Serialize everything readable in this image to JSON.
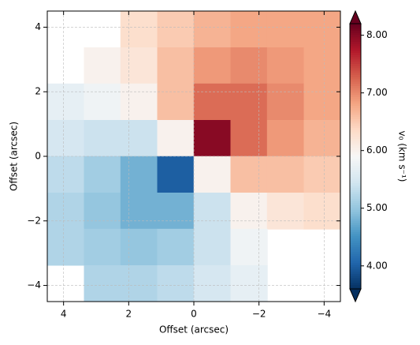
{
  "chart_data": {
    "type": "heatmap",
    "x_label": "Offset (arcsec)",
    "y_label": "Offset (arcsec)",
    "colorbar_label": "v₀ (km s⁻¹)",
    "xlim": [
      4.5,
      -4.5
    ],
    "ylim": [
      -4.5,
      4.5
    ],
    "xticks": [
      4,
      2,
      0,
      {
        "value": -2,
        "label": "−2"
      },
      {
        "value": -4,
        "label": "−4"
      }
    ],
    "yticks": [
      {
        "value": -4,
        "label": "−4"
      },
      {
        "value": -2,
        "label": "−2"
      },
      0,
      2,
      4
    ],
    "grid": true,
    "x": [
      3.94,
      2.81,
      1.69,
      0.56,
      -0.56,
      -1.69,
      -2.81,
      -3.94
    ],
    "y": [
      3.94,
      2.81,
      1.69,
      0.56,
      -0.56,
      -1.69,
      -2.81,
      -3.94
    ],
    "z": [
      [
        null,
        null,
        6.3,
        6.5,
        6.7,
        6.8,
        6.8,
        6.8
      ],
      [
        null,
        6.0,
        6.2,
        6.6,
        6.9,
        7.0,
        6.9,
        6.8
      ],
      [
        5.7,
        5.8,
        6.0,
        6.6,
        7.2,
        7.2,
        7.0,
        6.8
      ],
      [
        5.5,
        5.4,
        5.4,
        6.0,
        8.0,
        7.2,
        6.9,
        6.7
      ],
      [
        5.3,
        5.1,
        4.8,
        4.0,
        6.0,
        6.6,
        6.6,
        6.5
      ],
      [
        5.2,
        5.0,
        4.8,
        4.8,
        5.4,
        6.0,
        6.2,
        6.3
      ],
      [
        5.2,
        5.1,
        5.0,
        5.1,
        5.4,
        5.8,
        null,
        null
      ],
      [
        null,
        5.2,
        5.2,
        5.3,
        5.5,
        5.7,
        null,
        null
      ]
    ],
    "clim": [
      3.6,
      8.2
    ],
    "colorbar_ticks": [
      {
        "value": 4,
        "label": "4.00"
      },
      {
        "value": 5,
        "label": "5.00"
      },
      {
        "value": 6,
        "label": "6.00"
      },
      {
        "value": 7,
        "label": "7.00"
      },
      {
        "value": 8,
        "label": "8.00"
      }
    ],
    "colormap": [
      "#053061",
      "#2166ac",
      "#4393c3",
      "#92c5de",
      "#d1e5f0",
      "#f7f7f7",
      "#fddbc7",
      "#f4a582",
      "#d6604d",
      "#b2182b",
      "#67001f"
    ]
  }
}
